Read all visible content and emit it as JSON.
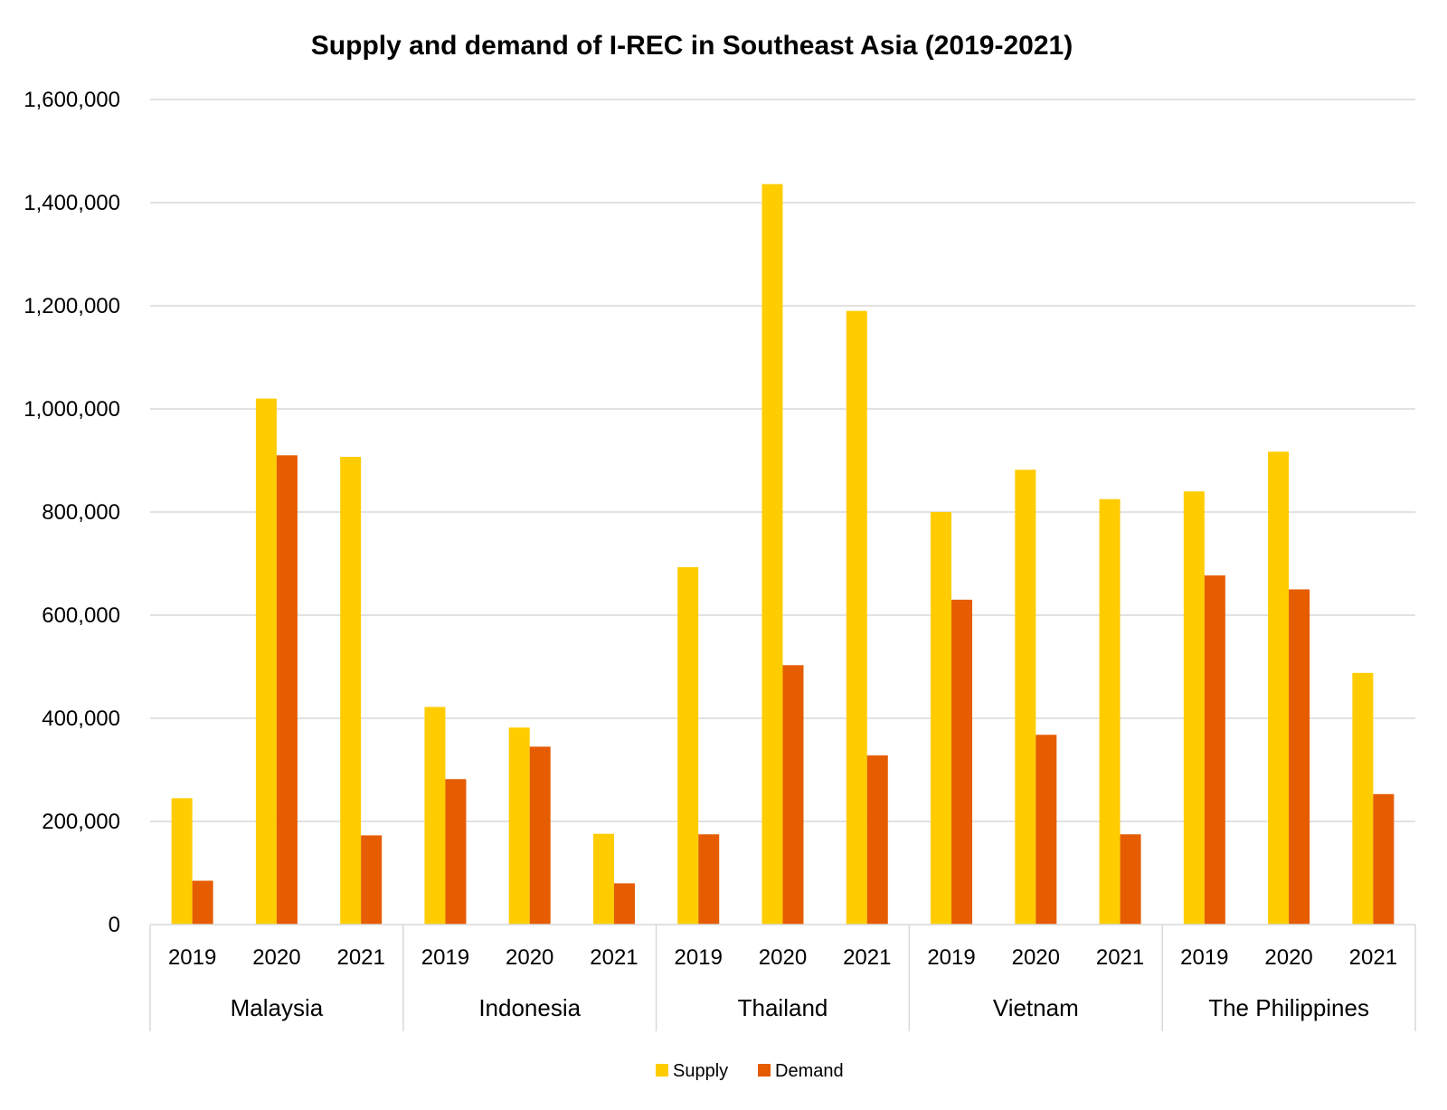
{
  "chart_data": {
    "type": "bar",
    "title": "Supply and demand of I-REC in Southeast Asia (2019-2021)",
    "xlabel": "",
    "ylabel": "",
    "ylim": [
      0,
      1600000
    ],
    "yticks": [
      "0",
      "200,000",
      "400,000",
      "600,000",
      "800,000",
      "1,000,000",
      "1,200,000",
      "1,400,000",
      "1,600,000"
    ],
    "grid": true,
    "legend_position": "bottom-center",
    "groups": [
      {
        "name": "Malaysia",
        "categories": [
          "2019",
          "2020",
          "2021"
        ]
      },
      {
        "name": "Indonesia",
        "categories": [
          "2019",
          "2020",
          "2021"
        ]
      },
      {
        "name": "Thailand",
        "categories": [
          "2019",
          "2020",
          "2021"
        ]
      },
      {
        "name": "Vietnam",
        "categories": [
          "2019",
          "2020",
          "2021"
        ]
      },
      {
        "name": "The Philippines",
        "categories": [
          "2019",
          "2020",
          "2021"
        ]
      }
    ],
    "series": [
      {
        "name": "Supply",
        "color": "#FFCC00",
        "values": [
          245000,
          1020000,
          907000,
          422000,
          382000,
          176000,
          693000,
          1436000,
          1190000,
          800000,
          882000,
          825000,
          840000,
          917000,
          488000
        ]
      },
      {
        "name": "Demand",
        "color": "#E65C00",
        "values": [
          85000,
          910000,
          173000,
          282000,
          345000,
          80000,
          175000,
          503000,
          328000,
          630000,
          368000,
          175000,
          677000,
          650000,
          253000
        ]
      }
    ]
  }
}
